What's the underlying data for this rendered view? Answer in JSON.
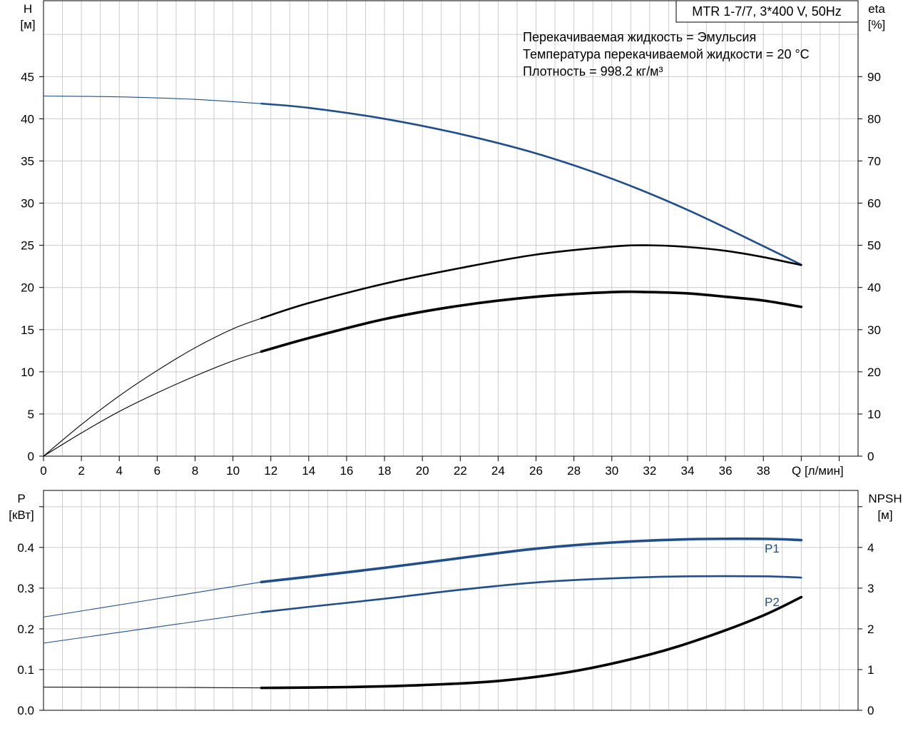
{
  "title": "MTR 1-7/7, 3*400 V, 50Hz",
  "info_lines": [
    "Перекачиваемая жидкость = Эмульсия",
    "Температура перекачиваемой жидкости = 20 °C",
    "Плотность = 998.2 кг/м³"
  ],
  "colors": {
    "blue": "#1f4e8a",
    "black": "#000000",
    "grid": "#cccccc"
  },
  "chart_data": [
    {
      "type": "line",
      "panel": "top",
      "xlabel": "Q [л/мин]",
      "ylabel_left": [
        "H",
        "[м]"
      ],
      "ylabel_right": [
        "eta",
        "[%]"
      ],
      "xlim": [
        0,
        43
      ],
      "ylim_left": [
        0,
        54
      ],
      "ylim_right": [
        0,
        108
      ],
      "x_ticks": [
        0,
        2,
        4,
        6,
        8,
        10,
        12,
        14,
        16,
        18,
        20,
        22,
        24,
        26,
        28,
        30,
        32,
        34,
        36,
        38
      ],
      "y_ticks_left": [
        0,
        5,
        10,
        15,
        20,
        25,
        30,
        35,
        40,
        45
      ],
      "y_ticks_right": [
        0,
        10,
        20,
        30,
        40,
        50,
        60,
        70,
        80,
        90
      ],
      "series": [
        {
          "key": "H",
          "axis": "left",
          "color": "blue",
          "x": [
            0,
            4,
            8,
            11.5,
            14,
            18,
            22,
            26,
            30,
            34,
            38,
            40
          ],
          "y": [
            42.7,
            42.6,
            42.3,
            41.8,
            41.3,
            40.0,
            38.2,
            35.9,
            32.9,
            29.2,
            24.9,
            22.7
          ],
          "bold_from": 11.5
        },
        {
          "key": "eta_pump",
          "axis": "right",
          "color": "black",
          "x": [
            0,
            2,
            4,
            6,
            8,
            10,
            11.5,
            14,
            18,
            22,
            26,
            30,
            32,
            34,
            36,
            38,
            40
          ],
          "y": [
            0,
            7.5,
            14.3,
            20.3,
            25.7,
            30.2,
            32.7,
            36.3,
            40.9,
            44.6,
            47.8,
            49.7,
            50.0,
            49.6,
            48.7,
            47.2,
            45.3
          ],
          "bold_from": 11.5
        },
        {
          "key": "eta_total",
          "axis": "right",
          "color": "black",
          "width": "thick",
          "x": [
            0,
            2,
            4,
            6,
            8,
            10,
            11.5,
            14,
            18,
            22,
            26,
            30,
            32,
            34,
            36,
            38,
            40
          ],
          "y": [
            0,
            5.5,
            10.6,
            15.0,
            19.0,
            22.6,
            24.8,
            28.0,
            32.5,
            35.7,
            37.8,
            38.9,
            38.9,
            38.6,
            37.8,
            36.9,
            35.4
          ],
          "bold_from": 11.5
        }
      ]
    },
    {
      "type": "line",
      "panel": "bottom",
      "xlim": [
        0,
        43
      ],
      "ylabel_left": [
        "P",
        "[кВт]"
      ],
      "ylabel_right": [
        "NPSH",
        "[м]"
      ],
      "ylim_left": [
        0,
        0.54
      ],
      "ylim_right": [
        0,
        5.4
      ],
      "y_ticks_left": [
        "0.0",
        "0.1",
        "0.2",
        "0.3",
        "0.4"
      ],
      "y_ticks_right": [
        0,
        1,
        2,
        3,
        4
      ],
      "series": [
        {
          "key": "P1",
          "name": "P1",
          "axis": "left",
          "color": "blue",
          "width": "thick",
          "x": [
            0,
            11.5,
            14,
            18,
            22,
            26,
            30,
            34,
            38,
            40
          ],
          "y": [
            0.229,
            0.315,
            0.328,
            0.35,
            0.374,
            0.397,
            0.412,
            0.42,
            0.421,
            0.418
          ],
          "bold_from": 11.5
        },
        {
          "key": "P2",
          "name": "P2",
          "axis": "left",
          "color": "blue",
          "x": [
            0,
            11.5,
            14,
            18,
            22,
            26,
            30,
            34,
            38,
            40
          ],
          "y": [
            0.165,
            0.241,
            0.254,
            0.274,
            0.296,
            0.314,
            0.324,
            0.329,
            0.329,
            0.326
          ],
          "bold_from": 11.5
        },
        {
          "key": "NPSH",
          "axis": "right",
          "color": "black",
          "width": "thick",
          "x": [
            0,
            8,
            11.5,
            16,
            20,
            24,
            28,
            32,
            35,
            38,
            40
          ],
          "y": [
            0.57,
            0.56,
            0.55,
            0.57,
            0.62,
            0.72,
            0.96,
            1.37,
            1.8,
            2.33,
            2.78
          ],
          "bold_from": 11.5
        }
      ]
    }
  ]
}
